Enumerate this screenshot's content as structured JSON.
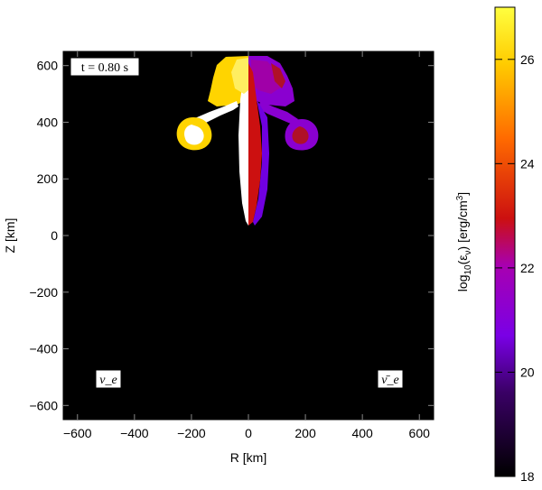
{
  "chart_data": {
    "type": "heatmap",
    "xlabel": "R [km]",
    "ylabel": "Z [km]",
    "xlim": [
      -650,
      650
    ],
    "ylim": [
      -650,
      650
    ],
    "x_ticks": [
      -600,
      -400,
      -200,
      0,
      200,
      400,
      600
    ],
    "y_ticks": [
      -600,
      -400,
      -200,
      0,
      200,
      400,
      600
    ],
    "time_label": "t = 0.80 s",
    "left_panel_label": "ν_e",
    "right_panel_label": "ν̄_e",
    "colorbar": {
      "label": "log10(ε_ν) [erg/cm^3]",
      "range": [
        18,
        27
      ],
      "ticks": [
        18,
        20,
        22,
        24,
        26
      ],
      "colormap": [
        "#000000",
        "#7a00e6",
        "#cc1010",
        "#ff7a00",
        "#ffd700",
        "#ffff55"
      ]
    },
    "features": [
      {
        "name": "nu_e jet and lobes",
        "side": "left",
        "level": 26.5
      },
      {
        "name": "anti-nu_e jet and lobes",
        "side": "right",
        "level": 21.0
      }
    ]
  }
}
